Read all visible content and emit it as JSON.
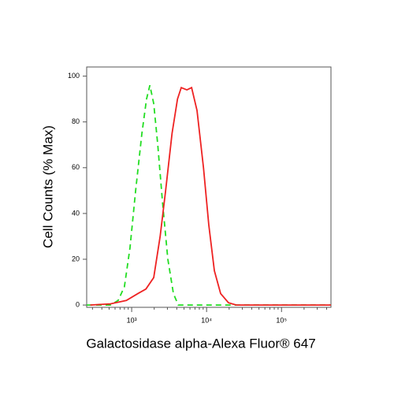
{
  "chart_data": {
    "type": "line",
    "x_label": "Galactosidase alpha-Alexa Fluor® 647",
    "y_label": "Cell Counts (% Max)",
    "x_scale": "log",
    "xlim": [
      251,
      457000
    ],
    "ylim": [
      -1,
      104
    ],
    "xticks": [
      {
        "value": 1000,
        "label": "10³"
      },
      {
        "value": 10000,
        "label": "10⁴"
      },
      {
        "value": 100000,
        "label": "10⁵"
      }
    ],
    "yticks": [
      0,
      20,
      40,
      60,
      80,
      100
    ],
    "series": [
      {
        "color": "#22dd22",
        "dash": true,
        "x": [
          251,
          520,
          660,
          800,
          950,
          1130,
          1370,
          1580,
          1750,
          1970,
          2230,
          2580,
          3040,
          3610,
          4190,
          457000
        ],
        "values": [
          0,
          0,
          2,
          8,
          25,
          50,
          75,
          90,
          96,
          88,
          70,
          45,
          20,
          5,
          0,
          0
        ]
      },
      {
        "color": "#ee2222",
        "dash": false,
        "x": [
          280,
          520,
          850,
          1210,
          1550,
          1970,
          2400,
          2840,
          3460,
          4090,
          4590,
          5460,
          6310,
          7450,
          9090,
          10700,
          12700,
          15400,
          19600,
          25000,
          457000
        ],
        "values": [
          0,
          0.5,
          2,
          5,
          7,
          12,
          30,
          50,
          75,
          90,
          95,
          94,
          95,
          85,
          60,
          35,
          15,
          5,
          1,
          0,
          0
        ]
      }
    ]
  }
}
